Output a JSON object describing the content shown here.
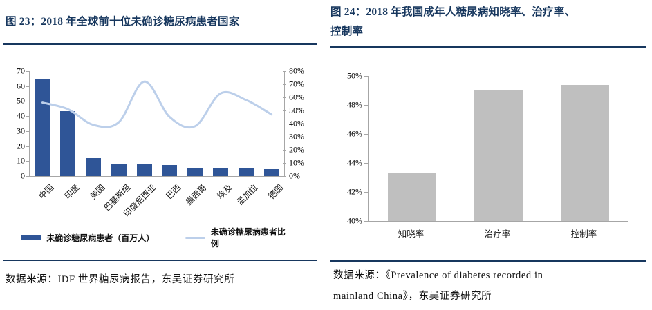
{
  "page": {
    "background": "#ffffff",
    "accent_color": "#17375E"
  },
  "left_figure": {
    "title": "图 23：2018 年全球前十位未确诊糖尿病患者国家",
    "source": "数据来源：IDF 世界糖尿病报告，东吴证券研究所"
  },
  "right_figure": {
    "title_lines": [
      "图 24：2018 年我国成年人糖尿病知晓率、治疗率、",
      "控制率"
    ],
    "source_lines": [
      "数据来源：《Prevalence of diabetes recorded in",
      "mainland China》，东吴证券研究所"
    ]
  },
  "chart_data": [
    {
      "type": "bar",
      "subtype": "combo-bar-line",
      "title": "2018 年全球前十位未确诊糖尿病患者国家",
      "categories": [
        "中国",
        "印度",
        "美国",
        "巴基斯坦",
        "印度尼西亚",
        "巴西",
        "墨西哥",
        "埃及",
        "孟加拉",
        "德国"
      ],
      "series": [
        {
          "name": "未确诊糖尿病患者（百万人）",
          "type": "bar",
          "axis": "left",
          "color": "#2F5597",
          "values": [
            65,
            43.5,
            11.8,
            8.5,
            8,
            7.5,
            5,
            5,
            5,
            4.8
          ]
        },
        {
          "name": "未确诊糖尿病患者比例",
          "type": "line",
          "axis": "right",
          "color": "#BCCFEA",
          "values": [
            56,
            51,
            39,
            41,
            72,
            45,
            38,
            63,
            58,
            47
          ]
        }
      ],
      "left_axis": {
        "min": 0,
        "max": 70,
        "step": 10,
        "format": "number"
      },
      "right_axis": {
        "min": 0,
        "max": 80,
        "step": 10,
        "format": "percent"
      },
      "grid": false,
      "legend_position": "bottom"
    },
    {
      "type": "bar",
      "title": "2018 年我国成年人糖尿病知晓率、治疗率、控制率",
      "categories": [
        "知晓率",
        "治疗率",
        "控制率"
      ],
      "values": [
        43.3,
        49.0,
        49.4
      ],
      "bar_color": "#BFBFBF",
      "yaxis": {
        "min": 40,
        "max": 50,
        "step": 2,
        "format": "percent"
      },
      "grid": false,
      "legend_position": "none"
    }
  ]
}
